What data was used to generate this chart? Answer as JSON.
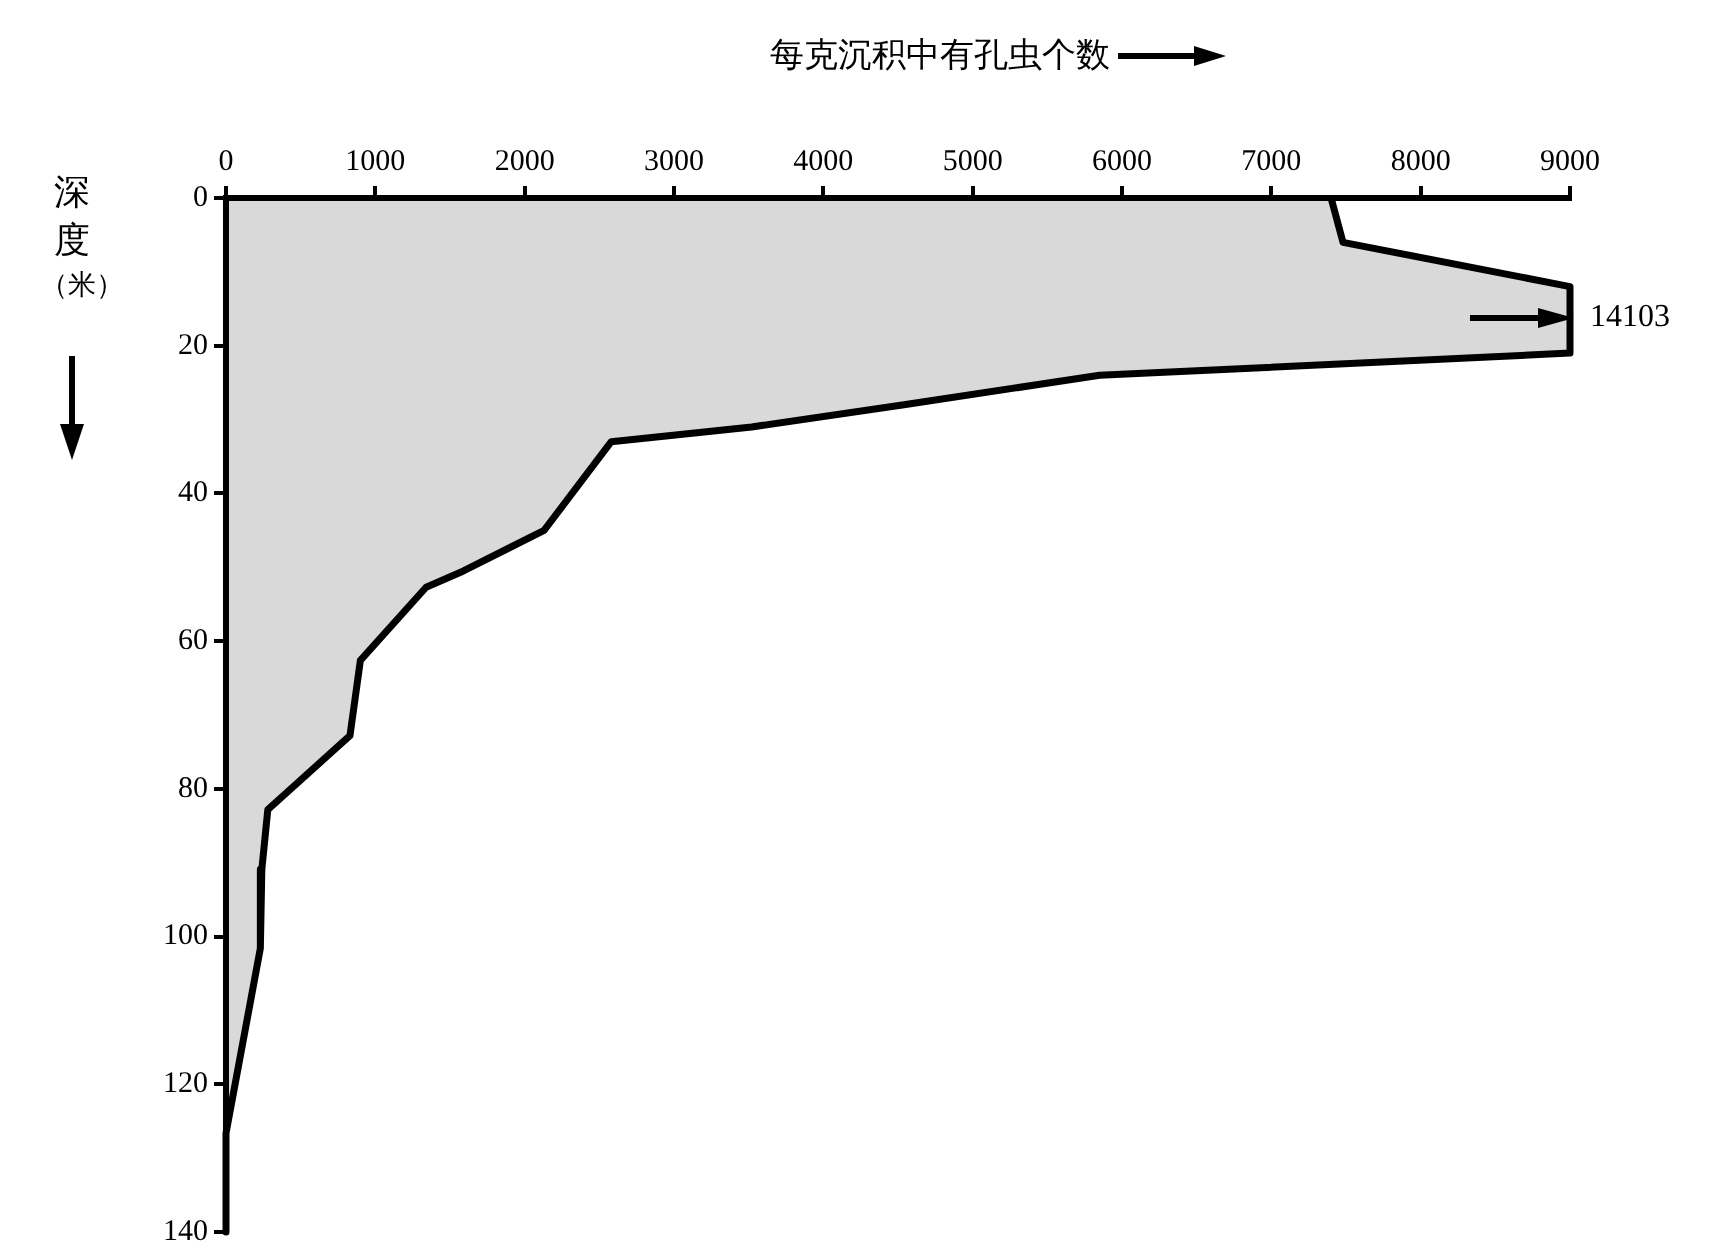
{
  "chart_data": {
    "type": "area",
    "orientation": "horizontal",
    "xlabel": "每克沉积中有孔虫个数",
    "ylabel": "深度（米）",
    "x": [
      0,
      6,
      12,
      21,
      24,
      28,
      31,
      33,
      45,
      50.5,
      52.7,
      62.6,
      72.8,
      82.8,
      90.9,
      101.6,
      126.6,
      140
    ],
    "series": [
      {
        "color": "#000000",
        "values": [
          7400,
          7480,
          9000,
          9000,
          5850,
          4540,
          3520,
          2580,
          2130,
          1590,
          1340,
          900,
          830,
          280,
          240,
          230,
          0,
          0
        ]
      }
    ],
    "xlim": [
      0,
      9000
    ],
    "xticks": [
      0,
      1000,
      2000,
      3000,
      4000,
      5000,
      6000,
      7000,
      8000,
      9000
    ],
    "ylim": [
      140,
      0
    ],
    "yticks": [
      0,
      20,
      40,
      60,
      80,
      100,
      120,
      140
    ],
    "annotations": [
      "14103"
    ],
    "grid": false,
    "legend": false,
    "marker": "none",
    "line_style": "solid"
  }
}
